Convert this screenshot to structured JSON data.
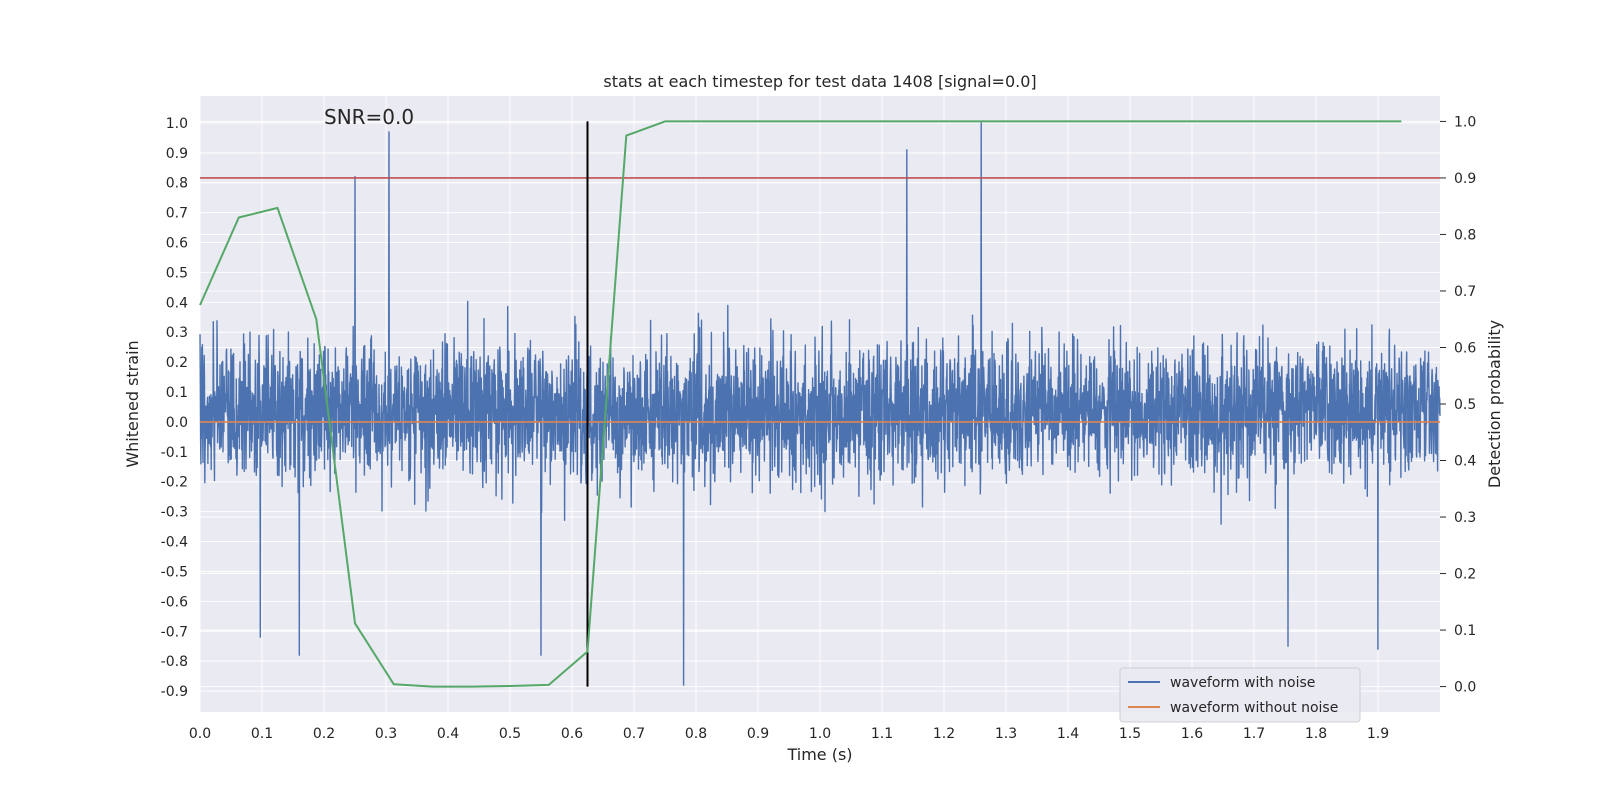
{
  "chart_data": {
    "type": "line",
    "title": "stats at each timestep for test data 1408 [signal=0.0]",
    "xlabel": "Time (s)",
    "ylabel": "Whitened strain",
    "y2label": "Detection probability",
    "annotation": "SNR=0.0",
    "xlim": [
      0.0,
      2.0
    ],
    "ylim": [
      -0.97,
      1.09
    ],
    "y2lim": [
      -0.045,
      1.045
    ],
    "xticks": [
      "0.0",
      "0.1",
      "0.2",
      "0.3",
      "0.4",
      "0.5",
      "0.6",
      "0.7",
      "0.8",
      "0.9",
      "1.0",
      "1.1",
      "1.2",
      "1.3",
      "1.4",
      "1.5",
      "1.6",
      "1.7",
      "1.8",
      "1.9"
    ],
    "yticks": [
      "1.0",
      "0.9",
      "0.8",
      "0.7",
      "0.6",
      "0.5",
      "0.4",
      "0.3",
      "0.2",
      "0.1",
      "0.0",
      "-0.1",
      "-0.2",
      "-0.3",
      "-0.4",
      "-0.5",
      "-0.6",
      "-0.7",
      "-0.8",
      "-0.9"
    ],
    "y2ticks": [
      "1.0",
      "0.9",
      "0.8",
      "0.7",
      "0.6",
      "0.5",
      "0.4",
      "0.3",
      "0.2",
      "0.1",
      "0.0"
    ],
    "grid": true,
    "legend_position": "lower-right",
    "series": [
      {
        "name": "waveform with noise",
        "color": "#4c72b0",
        "axis": "left",
        "style": "noise",
        "sample_count": 4096,
        "approx_range": [
          -0.88,
          1.0
        ],
        "spikes": [
          [
            0.305,
            0.97
          ],
          [
            0.25,
            0.82
          ],
          [
            1.14,
            0.91
          ],
          [
            1.26,
            1.0
          ],
          [
            0.78,
            -0.88
          ],
          [
            0.16,
            -0.78
          ],
          [
            0.55,
            -0.78
          ],
          [
            1.755,
            -0.75
          ],
          [
            1.9,
            -0.76
          ],
          [
            0.097,
            -0.72
          ]
        ]
      },
      {
        "name": "waveform without noise",
        "color": "#dd8452",
        "axis": "left",
        "x": [
          0.0,
          2.0
        ],
        "values": [
          0.0,
          0.0
        ]
      },
      {
        "color": "#55a868",
        "axis": "right",
        "x": [
          0.0,
          0.0625,
          0.125,
          0.1875,
          0.25,
          0.3125,
          0.375,
          0.4375,
          0.5,
          0.5625,
          0.625,
          0.6875,
          0.75,
          0.8125,
          0.875,
          0.9375,
          1.0,
          1.0625,
          1.125,
          1.1875,
          1.25,
          1.3125,
          1.375,
          1.4375,
          1.5,
          1.5625,
          1.625,
          1.6875,
          1.75,
          1.8125,
          1.875,
          1.9375
        ],
        "values": [
          0.675,
          0.83,
          0.847,
          0.65,
          0.112,
          0.004,
          0.0,
          0.0,
          0.001,
          0.003,
          0.062,
          0.975,
          1.0,
          1.0,
          1.0,
          1.0,
          1.0,
          1.0,
          1.0,
          1.0,
          1.0,
          1.0,
          1.0,
          1.0,
          1.0,
          1.0,
          1.0,
          1.0,
          1.0,
          1.0,
          1.0,
          1.0
        ]
      }
    ],
    "hlines": [
      {
        "axis": "right",
        "y": 0.9,
        "color": "#c44e52"
      }
    ],
    "vlines": [
      {
        "x": 0.625,
        "y2range": [
          0.0,
          1.0
        ],
        "color": "#000000"
      }
    ],
    "colors": {
      "plot_background": "#eaeaf2",
      "grid": "#ffffff",
      "text": "#262626"
    }
  }
}
